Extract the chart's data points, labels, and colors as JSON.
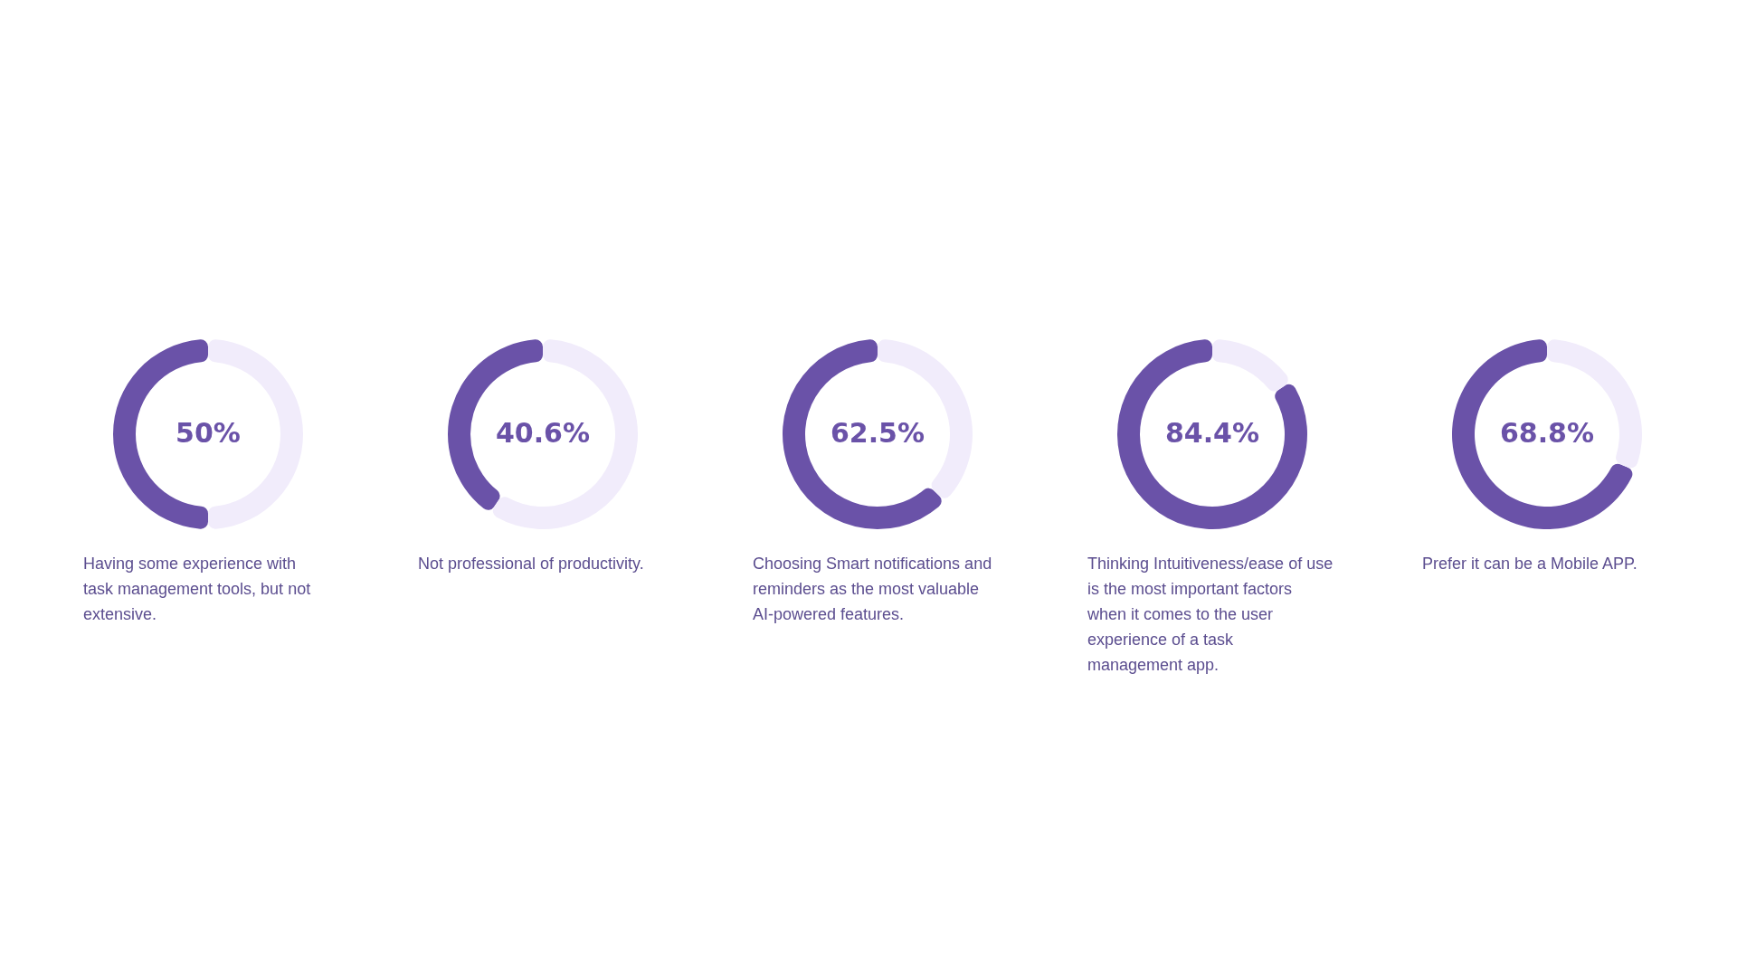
{
  "chart_data": [
    {
      "type": "donut",
      "categories": [
        null,
        null
      ],
      "values": [
        50,
        50
      ],
      "colors": [
        "#6a52a8",
        "#f1ecfb"
      ],
      "value_labels": [
        "50%",
        null
      ],
      "annotations": [
        "Having some experience with",
        "task management tools, but not",
        "extensive."
      ]
    },
    {
      "type": "donut",
      "categories": [
        null,
        null
      ],
      "values": [
        40.6,
        59.4
      ],
      "colors": [
        "#6a52a8",
        "#f1ecfb"
      ],
      "value_labels": [
        "40.6%",
        null
      ],
      "annotations": [
        "Not professional of productivity."
      ]
    },
    {
      "type": "donut",
      "categories": [
        null,
        null
      ],
      "values": [
        62.5,
        37.5
      ],
      "colors": [
        "#6a52a8",
        "#f1ecfb"
      ],
      "value_labels": [
        "62.5%",
        null
      ],
      "annotations": [
        "Choosing Smart notifications and",
        "reminders as the most valuable",
        "AI-powered features."
      ]
    },
    {
      "type": "donut",
      "categories": [
        null,
        null
      ],
      "values": [
        84.4,
        15.6
      ],
      "colors": [
        "#6a52a8",
        "#f1ecfb"
      ],
      "value_labels": [
        "84.4%",
        null
      ],
      "annotations": [
        "Thinking Intuitiveness/ease of use",
        "is the most important factors",
        "when it comes to the user",
        "experience of a task",
        "management app."
      ]
    },
    {
      "type": "donut",
      "categories": [
        null,
        null
      ],
      "values": [
        68.8,
        31.2
      ],
      "colors": [
        "#6a52a8",
        "#f1ecfb"
      ],
      "value_labels": [
        "68.8%",
        null
      ],
      "annotations": [
        "Prefer it can be a Mobile APP."
      ]
    }
  ]
}
